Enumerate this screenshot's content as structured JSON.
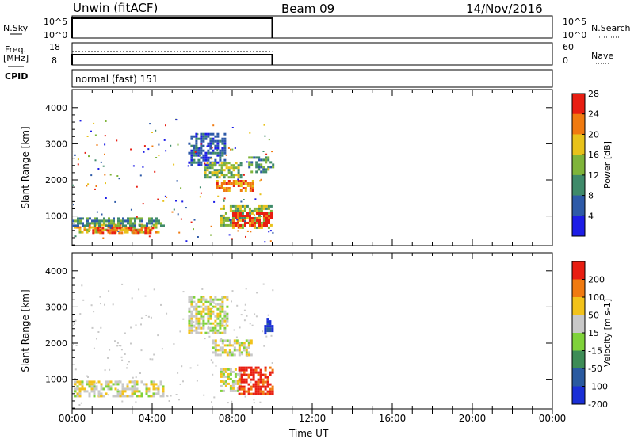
{
  "header": {
    "site": "Unwin (fitACF)",
    "beam": "Beam 09",
    "date": "14/Nov/2016"
  },
  "info_panels": {
    "nsky_label": "N.Sky",
    "nsky_ticks": [
      "10^5",
      "10^0"
    ],
    "nsky_right_ticks": [
      "10^5",
      "10^0"
    ],
    "nsearch_label": "N.Search",
    "freq_label": "Freq.",
    "freq_unit": "[MHz]",
    "freq_ticks": [
      "18",
      "8"
    ],
    "nave_ticks": [
      "60",
      "0"
    ],
    "nave_label": "Nave",
    "cpid_label": "CPID",
    "cpid_value": "normal (fast) 151"
  },
  "x_axis": {
    "label": "Time UT",
    "ticks": [
      "00:00",
      "04:00",
      "08:00",
      "12:00",
      "16:00",
      "20:00",
      "00:00"
    ]
  },
  "chart_data": [
    {
      "type": "heatmap",
      "panel": "power",
      "xlabel": "Time UT",
      "ylabel": "Slant Range [km]",
      "x_range_hours": [
        0,
        24
      ],
      "ylim": [
        180,
        4500
      ],
      "y_ticks": [
        "1000",
        "2000",
        "3000",
        "4000"
      ],
      "colorbar_label": "Power [dB]",
      "colorbar_ticks": [
        "4",
        "8",
        "12",
        "16",
        "20",
        "24",
        "28"
      ],
      "colors": [
        "#1d1de6",
        "#2e5aa8",
        "#3f8a6a",
        "#7fb43a",
        "#e8c21a",
        "#f07a10",
        "#e81e12"
      ],
      "data_coverage_hours": [
        0,
        10
      ],
      "regions": [
        {
          "t": [
            0.1,
            4.3
          ],
          "r": [
            520,
            780
          ],
          "level": 4
        },
        {
          "t": [
            1.0,
            4.0
          ],
          "r": [
            540,
            700
          ],
          "level": 6
        },
        {
          "t": [
            0.0,
            4.6
          ],
          "r": [
            720,
            960
          ],
          "level": 2
        },
        {
          "t": [
            5.8,
            7.6
          ],
          "r": [
            2400,
            3300
          ],
          "level": 1
        },
        {
          "t": [
            6.6,
            8.4
          ],
          "r": [
            2050,
            2500
          ],
          "level": 3
        },
        {
          "t": [
            7.2,
            9.0
          ],
          "r": [
            1700,
            2000
          ],
          "level": 5
        },
        {
          "t": [
            8.8,
            10.0
          ],
          "r": [
            2200,
            2650
          ],
          "level": 2
        },
        {
          "t": [
            7.4,
            10.0
          ],
          "r": [
            700,
            1300
          ],
          "level": 3
        },
        {
          "t": [
            8.0,
            10.0
          ],
          "r": [
            750,
            1100
          ],
          "level": 6
        }
      ]
    },
    {
      "type": "heatmap",
      "panel": "velocity",
      "xlabel": "Time UT",
      "ylabel": "Slant Range [km]",
      "x_range_hours": [
        0,
        24
      ],
      "ylim": [
        180,
        4500
      ],
      "y_ticks": [
        "1000",
        "2000",
        "3000",
        "4000"
      ],
      "colorbar_label": "Velocity [m s-1]",
      "colorbar_ticks": [
        "200",
        "100",
        "50",
        "15",
        "-15",
        "-50",
        "-100",
        "-200"
      ],
      "colors": [
        "#1a2fd6",
        "#2a5aa0",
        "#3d8c56",
        "#7fd23a",
        "#c8c8c8",
        "#f2c21a",
        "#f07a10",
        "#e81e12"
      ],
      "data_coverage_hours": [
        0,
        10
      ],
      "regions": [
        {
          "t": [
            0.1,
            4.5
          ],
          "r": [
            520,
            960
          ],
          "level": 4
        },
        {
          "t": [
            5.8,
            7.8
          ],
          "r": [
            2300,
            3300
          ],
          "level": 4
        },
        {
          "t": [
            7.0,
            9.0
          ],
          "r": [
            1700,
            2100
          ],
          "level": 4
        },
        {
          "t": [
            9.6,
            10.0
          ],
          "r": [
            2300,
            2700
          ],
          "level": 0
        },
        {
          "t": [
            7.4,
            8.4
          ],
          "r": [
            700,
            1300
          ],
          "level": 4
        },
        {
          "t": [
            8.3,
            10.0
          ],
          "r": [
            600,
            1350
          ],
          "level": 7
        }
      ]
    }
  ]
}
